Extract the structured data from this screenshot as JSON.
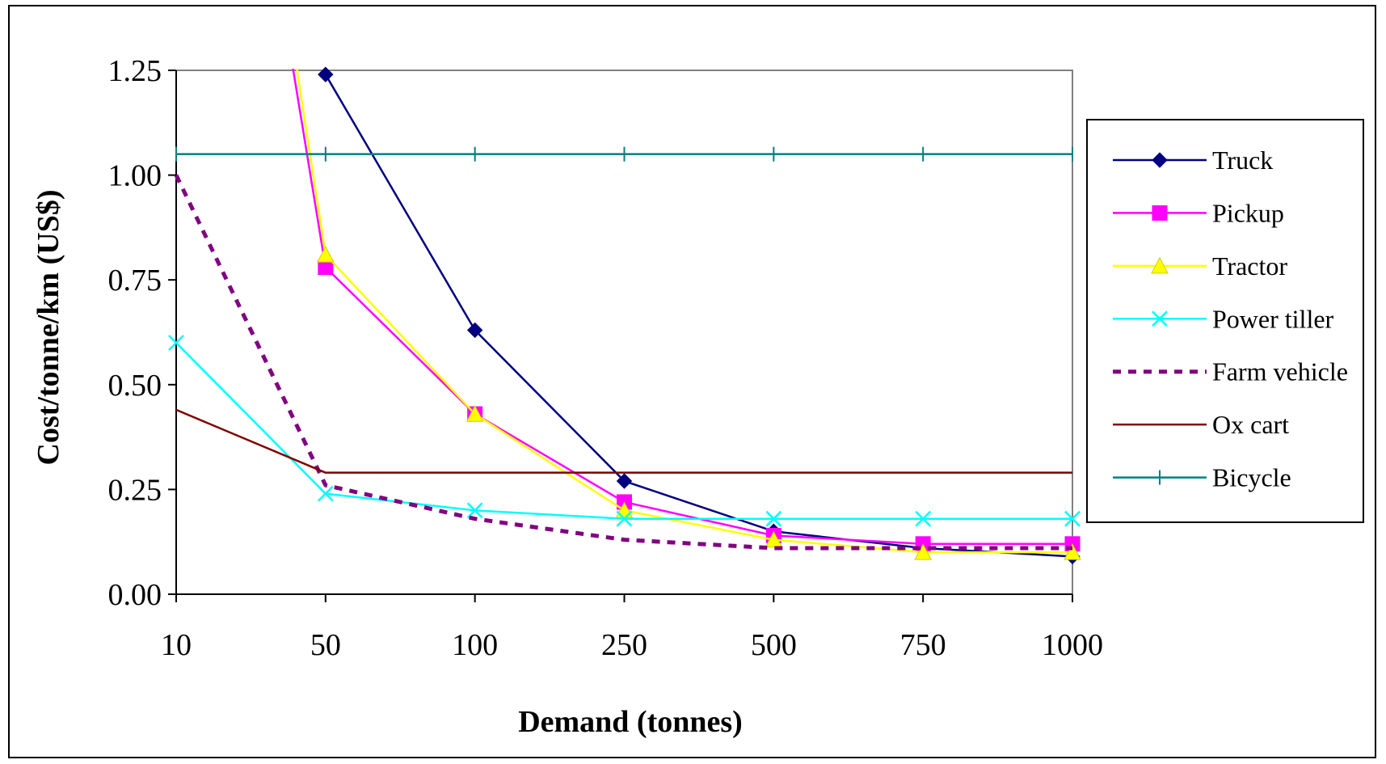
{
  "chart_data": {
    "type": "line",
    "xlabel": "Demand (tonnes)",
    "ylabel": "Cost/tonne/km (US$)",
    "categories": [
      "10",
      "50",
      "100",
      "250",
      "500",
      "750",
      "1000"
    ],
    "ylim": [
      0,
      1.25
    ],
    "yticks": [
      "0.00",
      "0.25",
      "0.50",
      "0.75",
      "1.00",
      "1.25"
    ],
    "grid": false,
    "legend_position": "right",
    "series": [
      {
        "name": "Truck",
        "color": "#000080",
        "marker": "diamond",
        "dash": "solid",
        "values": [
          null,
          1.24,
          0.63,
          0.27,
          0.15,
          0.11,
          0.09
        ]
      },
      {
        "name": "Pickup",
        "color": "#ff00ff",
        "marker": "square",
        "dash": "solid",
        "values": [
          null,
          0.78,
          0.43,
          0.22,
          0.14,
          0.12,
          0.12
        ]
      },
      {
        "name": "Tractor",
        "color": "#ffff00",
        "marker": "triangle",
        "dash": "solid",
        "values": [
          null,
          0.81,
          0.43,
          0.2,
          0.13,
          0.1,
          0.1
        ]
      },
      {
        "name": "Power tiller",
        "color": "#00ffff",
        "marker": "x",
        "dash": "solid",
        "values": [
          0.6,
          0.24,
          0.2,
          0.18,
          0.18,
          0.18,
          0.18
        ]
      },
      {
        "name": "Farm vehicle",
        "color": "#800080",
        "marker": "none",
        "dash": "dashed",
        "values": [
          1.0,
          0.26,
          0.18,
          0.13,
          0.11,
          0.11,
          0.11
        ]
      },
      {
        "name": "Ox cart",
        "color": "#800000",
        "marker": "none",
        "dash": "solid",
        "values": [
          0.44,
          0.29,
          0.29,
          0.29,
          0.29,
          0.29,
          0.29
        ]
      },
      {
        "name": "Bicycle",
        "color": "#008080",
        "marker": "plus",
        "dash": "solid",
        "values": [
          1.05,
          1.05,
          1.05,
          1.05,
          1.05,
          1.05,
          1.05
        ]
      }
    ]
  }
}
